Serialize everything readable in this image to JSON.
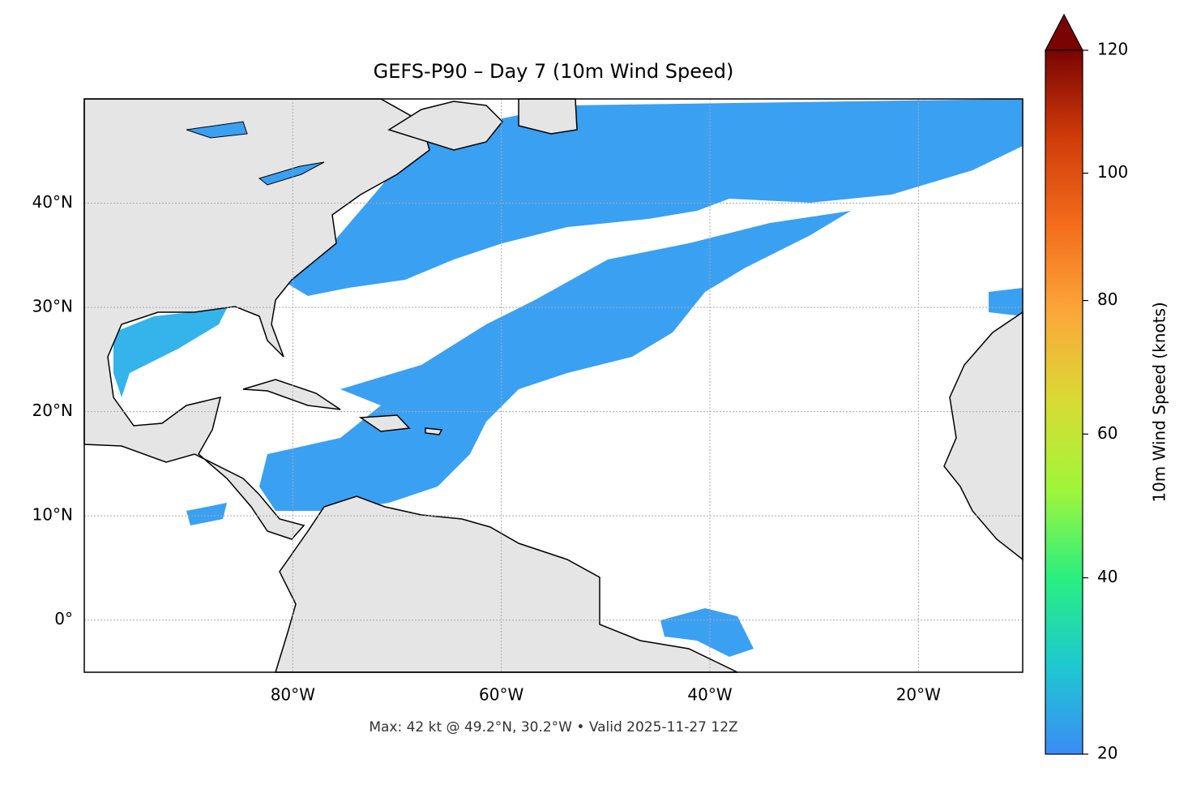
{
  "chart_data": {
    "type": "map",
    "title": "GEFS-P90 – Day 7 (10m Wind Speed)",
    "footnote": "Max: 42 kt @ 49.2°N, 30.2°W • Valid 2025-11-27 12Z",
    "xlim": [
      -100,
      -10
    ],
    "ylim": [
      -5,
      50
    ],
    "xticks": [
      {
        "value": -80,
        "label": "80°W"
      },
      {
        "value": -60,
        "label": "60°W"
      },
      {
        "value": -40,
        "label": "40°W"
      },
      {
        "value": -20,
        "label": "20°W"
      }
    ],
    "yticks": [
      {
        "value": 0,
        "label": "0°"
      },
      {
        "value": 10,
        "label": "10°N"
      },
      {
        "value": 20,
        "label": "20°N"
      },
      {
        "value": 30,
        "label": "30°N"
      },
      {
        "value": 40,
        "label": "40°N"
      }
    ],
    "grid": true,
    "colorbar": {
      "label": "10m Wind Speed (knots)",
      "lim": [
        20,
        120
      ],
      "ticks": [
        20,
        40,
        60,
        80,
        100,
        120
      ],
      "norm": "power",
      "gamma": 0.86,
      "colors": [
        "#3a8cf5",
        "#1ec8d0",
        "#29ef80",
        "#a0f53a",
        "#d8db34",
        "#fba83a",
        "#f46d1c",
        "#d03c0a",
        "#7a0403"
      ]
    }
  }
}
